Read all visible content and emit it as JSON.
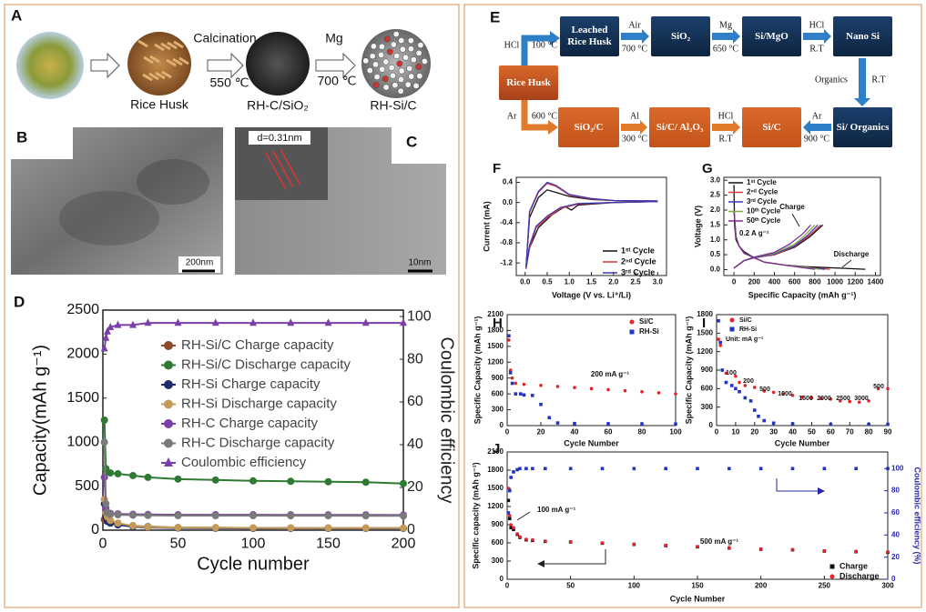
{
  "panel_a": {
    "label": "A",
    "items": [
      "Rice Husk",
      "RH-C/SiO₂",
      "RH-Si/C"
    ],
    "steps": [
      {
        "top": "Calcination",
        "bottom": "550 ℃"
      },
      {
        "top": "Mg",
        "bottom": "700 ℃"
      }
    ]
  },
  "panel_b": {
    "label": "B",
    "scale": "200nm"
  },
  "panel_c": {
    "label": "C",
    "scale": "10nm",
    "inset": "d=0.31nm"
  },
  "panel_e": {
    "label": "E",
    "nodes": [
      "Leached Rice Husk",
      "SiO₂",
      "Si/MgO",
      "Nano Si",
      "Rice Husk",
      "SiO₂/C",
      "Si/C/ Al₂O₃",
      "Si/C",
      "Si/ Organics"
    ],
    "edges": [
      {
        "top": "HCl",
        "bottom": "100 °C"
      },
      {
        "top": "Air",
        "bottom": "700 °C"
      },
      {
        "top": "Mg",
        "bottom": "650 °C"
      },
      {
        "top": "HCl",
        "bottom": "R.T"
      },
      {
        "top": "Organics",
        "bottom": "R.T"
      },
      {
        "top": "Ar",
        "bottom": "600 °C"
      },
      {
        "top": "Al",
        "bottom": "300 °C"
      },
      {
        "top": "HCl",
        "bottom": "R.T"
      },
      {
        "top": "Ar",
        "bottom": "900 °C"
      }
    ]
  },
  "chart_data": [
    {
      "type": "line",
      "panel": "D",
      "xlabel": "Cycle number",
      "ylabel": "Capacity(mAh g⁻¹)",
      "y2label": "Coulombic efficiency",
      "xlim": [
        0,
        200
      ],
      "ylim": [
        0,
        2500
      ],
      "y2lim": [
        0,
        103
      ],
      "xticks": [
        0,
        50,
        100,
        150,
        200
      ],
      "yticks": [
        0,
        500,
        1000,
        1500,
        2000,
        2500
      ],
      "y2ticks": [
        0,
        20,
        40,
        60,
        80,
        100
      ],
      "x": [
        1,
        2,
        3,
        5,
        10,
        20,
        30,
        50,
        75,
        100,
        125,
        150,
        175,
        200
      ],
      "series": [
        {
          "name": "RH-Si/C Charge capacity",
          "color": "#8b4b2a",
          "marker": "circle",
          "values": [
            120,
            110,
            100,
            90,
            70,
            50,
            40,
            30,
            28,
            25,
            25,
            24,
            24,
            23
          ]
        },
        {
          "name": "RH-Si/C Discharge capacity",
          "color": "#2f7a32",
          "marker": "circle",
          "values": [
            1250,
            700,
            660,
            650,
            640,
            620,
            600,
            580,
            570,
            560,
            555,
            550,
            545,
            530
          ]
        },
        {
          "name": "RH-Si    Charge capacity",
          "color": "#1f2d6b",
          "marker": "circle",
          "values": [
            300,
            150,
            100,
            80,
            60,
            40,
            30,
            25,
            22,
            20,
            20,
            20,
            20,
            20
          ]
        },
        {
          "name": "RH-Si    Discharge capacity",
          "color": "#c49a5a",
          "marker": "circle",
          "values": [
            350,
            200,
            150,
            110,
            80,
            50,
            35,
            30,
            27,
            25,
            24,
            24,
            23,
            23
          ]
        },
        {
          "name": "RH-C     Charge capacity",
          "color": "#7b3fa8",
          "marker": "circle",
          "values": [
            600,
            250,
            200,
            190,
            185,
            180,
            178,
            175,
            175,
            175,
            174,
            174,
            173,
            172
          ]
        },
        {
          "name": "RH-C     Discharge capacity",
          "color": "#7a7a7a",
          "marker": "circle",
          "values": [
            1000,
            300,
            200,
            180,
            175,
            170,
            168,
            165,
            165,
            165,
            164,
            164,
            163,
            162
          ]
        },
        {
          "name": "Coulombic efficiency",
          "color": "#7b3fa8",
          "marker": "triangle",
          "axis": "y2",
          "values": [
            85,
            90,
            93,
            95,
            96,
            96,
            97,
            97,
            97,
            97,
            97,
            97,
            97,
            97
          ]
        }
      ]
    },
    {
      "type": "line",
      "panel": "F",
      "xlabel": "Voltage (V vs. Li⁺/Li)",
      "ylabel": "Current (mA)",
      "xlim": [
        -0.2,
        3.2
      ],
      "ylim": [
        -1.45,
        0.5
      ],
      "xticks": [
        {
          "value": 0,
          "label": "0.0"
        },
        {
          "value": 0.5,
          "label": "0.5"
        },
        {
          "value": 1,
          "label": "1.0"
        },
        {
          "value": 1.5,
          "label": "1.5"
        },
        {
          "value": 2,
          "label": "2.0"
        },
        {
          "value": 2.5,
          "label": "2.5"
        },
        {
          "value": 3,
          "label": "3.0"
        }
      ],
      "yticks": [
        {
          "value": -1.2,
          "label": "-1.2"
        },
        {
          "value": -0.8,
          "label": "-0.8"
        },
        {
          "value": -0.4,
          "label": "-0.4"
        },
        {
          "value": 0,
          "label": "0.0"
        },
        {
          "value": 0.4,
          "label": "0.4"
        }
      ],
      "series": [
        {
          "name": "1ˢᵗ Cycle",
          "color": "#111111",
          "x": [
            3.0,
            2.0,
            1.2,
            1.05,
            0.9,
            0.6,
            0.3,
            0.1,
            0.02,
            0.1,
            0.3,
            0.5,
            0.7,
            1.0,
            1.5,
            2.0,
            3.0
          ],
          "values": [
            0.02,
            0.0,
            -0.05,
            -0.15,
            -0.08,
            -0.25,
            -0.5,
            -0.9,
            -1.3,
            -0.3,
            0.1,
            0.25,
            0.2,
            0.12,
            0.06,
            0.04,
            0.03
          ]
        },
        {
          "name": "2ⁿᵈ Cycle",
          "color": "#d9363e",
          "x": [
            3.0,
            2.0,
            1.2,
            0.8,
            0.5,
            0.25,
            0.1,
            0.02,
            0.1,
            0.3,
            0.5,
            0.7,
            1.0,
            1.5,
            2.0,
            3.0
          ],
          "values": [
            0.02,
            0.0,
            -0.03,
            -0.12,
            -0.3,
            -0.5,
            -0.9,
            -1.32,
            -0.2,
            0.2,
            0.38,
            0.32,
            0.15,
            0.07,
            0.04,
            0.03
          ]
        },
        {
          "name": "3ʳᵈ Cycle",
          "color": "#3b3bb5",
          "x": [
            3.0,
            2.0,
            1.2,
            0.8,
            0.5,
            0.25,
            0.1,
            0.02,
            0.1,
            0.3,
            0.5,
            0.7,
            1.0,
            1.5,
            2.0,
            3.0
          ],
          "values": [
            0.02,
            0.0,
            -0.02,
            -0.1,
            -0.27,
            -0.47,
            -0.85,
            -1.3,
            -0.18,
            0.22,
            0.4,
            0.34,
            0.16,
            0.08,
            0.04,
            0.03
          ]
        }
      ]
    },
    {
      "type": "line",
      "panel": "G",
      "xlabel": "Specific Capacity (mAh g⁻¹)",
      "ylabel": "Voltage (V)",
      "xlim": [
        -100,
        1450
      ],
      "ylim": [
        -0.2,
        3.1
      ],
      "xticks": [
        0,
        200,
        400,
        600,
        800,
        1000,
        1200,
        1400
      ],
      "yticks": [
        {
          "value": 0,
          "label": "0.0"
        },
        0.5,
        {
          "value": 1,
          "label": "1.0"
        },
        1.5,
        {
          "value": 2,
          "label": "2.0"
        },
        2.5,
        {
          "value": 3,
          "label": "3.0"
        }
      ],
      "annotations": [
        "Charge",
        "Discharge",
        "0.2 A g⁻¹"
      ],
      "series": [
        {
          "name": "1ˢᵗ Cycle",
          "color": "#111111",
          "x": [
            0,
            5,
            20,
            50,
            100,
            200,
            300,
            500,
            700,
            900,
            1100,
            1300,
            null,
            0,
            100,
            200,
            400,
            600,
            750,
            880
          ],
          "values": [
            2.85,
            1.5,
            1.0,
            0.8,
            0.6,
            0.4,
            0.25,
            0.15,
            0.1,
            0.07,
            0.04,
            0.01,
            null,
            0.05,
            0.3,
            0.4,
            0.5,
            0.75,
            1.1,
            1.5
          ]
        },
        {
          "name": "2ⁿᵈ Cycle",
          "color": "#d9363e",
          "x": [
            0,
            20,
            50,
            100,
            200,
            300,
            500,
            700,
            950,
            null,
            0,
            100,
            200,
            400,
            600,
            750,
            860
          ],
          "values": [
            2.0,
            1.1,
            0.8,
            0.55,
            0.4,
            0.25,
            0.15,
            0.08,
            0.01,
            null,
            0.05,
            0.3,
            0.4,
            0.5,
            0.78,
            1.15,
            1.5
          ]
        },
        {
          "name": "3ʳᵈ Cycle",
          "color": "#3b3bb5",
          "x": [
            0,
            20,
            50,
            100,
            200,
            300,
            500,
            700,
            900,
            null,
            0,
            100,
            200,
            400,
            600,
            730,
            830
          ],
          "values": [
            2.0,
            1.1,
            0.8,
            0.55,
            0.4,
            0.25,
            0.15,
            0.08,
            0.01,
            null,
            0.05,
            0.3,
            0.4,
            0.52,
            0.8,
            1.15,
            1.5
          ]
        },
        {
          "name": "10ᵗʰ Cycle",
          "color": "#7fae3f",
          "x": [
            0,
            20,
            50,
            100,
            200,
            300,
            500,
            700,
            850,
            null,
            0,
            100,
            200,
            400,
            600,
            700,
            800
          ],
          "values": [
            2.0,
            1.1,
            0.8,
            0.55,
            0.4,
            0.25,
            0.15,
            0.08,
            0.01,
            null,
            0.05,
            0.3,
            0.42,
            0.55,
            0.85,
            1.15,
            1.5
          ]
        },
        {
          "name": "50ᵗʰ Cycle",
          "color": "#7b2f8f",
          "x": [
            0,
            20,
            50,
            100,
            200,
            300,
            500,
            650,
            800,
            null,
            0,
            100,
            200,
            400,
            550,
            680,
            760
          ],
          "values": [
            2.0,
            1.1,
            0.8,
            0.55,
            0.4,
            0.25,
            0.15,
            0.08,
            0.01,
            null,
            0.05,
            0.3,
            0.42,
            0.58,
            0.85,
            1.2,
            1.5
          ]
        }
      ]
    },
    {
      "type": "scatter",
      "panel": "H",
      "xlabel": "Cycle Number",
      "ylabel": "Specific Capacity (mAh g⁻¹)",
      "xlim": [
        0,
        100
      ],
      "ylim": [
        0,
        2100
      ],
      "xticks": [
        0,
        20,
        40,
        60,
        80,
        100
      ],
      "yticks": [
        0,
        300,
        600,
        900,
        1200,
        1500,
        1800,
        2100
      ],
      "annotations": [
        "200 mA g⁻¹"
      ],
      "series": [
        {
          "name": "Si/C",
          "color": "#e8202a",
          "marker": "circle",
          "x": [
            1,
            2,
            3,
            5,
            10,
            20,
            30,
            40,
            50,
            60,
            70,
            80,
            90,
            100
          ],
          "values": [
            1620,
            1050,
            900,
            800,
            780,
            760,
            740,
            720,
            700,
            680,
            660,
            640,
            620,
            600
          ]
        },
        {
          "name": "RH-Si",
          "color": "#2233c8",
          "marker": "square",
          "x": [
            1,
            2,
            3,
            5,
            8,
            10,
            15,
            20,
            25,
            30,
            40,
            60,
            80,
            100
          ],
          "values": [
            1700,
            1000,
            800,
            600,
            600,
            580,
            570,
            400,
            150,
            50,
            40,
            35,
            30,
            30
          ]
        }
      ]
    },
    {
      "type": "scatter",
      "panel": "I",
      "xlabel": "Cycle Number",
      "ylabel": "Specific Capacity (mAh g⁻¹)",
      "xlim": [
        0,
        90
      ],
      "ylim": [
        0,
        1800
      ],
      "xticks": [
        0,
        10,
        20,
        30,
        40,
        50,
        60,
        70,
        80,
        90
      ],
      "yticks": [
        0,
        300,
        600,
        900,
        1200,
        1500,
        1800
      ],
      "annotations": [
        "Unit: mA g⁻¹",
        "100",
        "200",
        "500",
        "1000",
        "1500",
        "2000",
        "2500",
        "3000",
        "500"
      ],
      "series": [
        {
          "name": "Si/C",
          "color": "#e8202a",
          "marker": "circle",
          "x": [
            1,
            2,
            3,
            5,
            10,
            12,
            15,
            20,
            25,
            30,
            35,
            40,
            45,
            50,
            55,
            60,
            65,
            70,
            75,
            80,
            85,
            90
          ],
          "values": [
            1400,
            1300,
            900,
            850,
            800,
            700,
            650,
            620,
            560,
            540,
            510,
            490,
            460,
            450,
            440,
            430,
            400,
            390,
            380,
            400,
            600,
            600
          ]
        },
        {
          "name": "RH-Si",
          "color": "#2233c8",
          "marker": "square",
          "x": [
            1,
            2,
            3,
            5,
            8,
            10,
            12,
            15,
            18,
            20,
            22,
            25,
            30,
            40,
            60,
            80,
            90
          ],
          "values": [
            1700,
            1350,
            900,
            700,
            650,
            600,
            550,
            450,
            400,
            250,
            150,
            80,
            40,
            30,
            20,
            20,
            20
          ]
        }
      ]
    },
    {
      "type": "scatter",
      "panel": "J",
      "xlabel": "Cycle Number",
      "ylabel": "Specific capacity (mAh g⁻¹)",
      "y2label": "Coulombic efficiency (%)",
      "y2_color": "#2727a8",
      "xlim": [
        0,
        300
      ],
      "ylim": [
        0,
        2100
      ],
      "y2lim": [
        0,
        115
      ],
      "xticks": [
        0,
        50,
        100,
        150,
        200,
        250,
        300
      ],
      "yticks": [
        0,
        300,
        600,
        900,
        1200,
        1500,
        1800,
        2100
      ],
      "y2ticks": [
        0,
        20,
        40,
        60,
        80,
        100
      ],
      "annotations": [
        "100 mA g⁻¹",
        "500 mA g⁻¹"
      ],
      "x": [
        1,
        2,
        3,
        5,
        8,
        10,
        15,
        20,
        30,
        50,
        75,
        100,
        125,
        150,
        175,
        200,
        225,
        250,
        275,
        300
      ],
      "series": [
        {
          "name": "Charge",
          "color": "#111111",
          "marker": "square",
          "values": [
            1300,
            1000,
            850,
            820,
            740,
            690,
            650,
            640,
            625,
            615,
            595,
            575,
            555,
            535,
            515,
            495,
            485,
            465,
            455,
            445
          ]
        },
        {
          "name": "Discharge",
          "color": "#e8202a",
          "marker": "circle",
          "values": [
            1500,
            1050,
            900,
            850,
            750,
            700,
            660,
            650,
            630,
            620,
            600,
            580,
            560,
            540,
            520,
            500,
            490,
            470,
            460,
            450
          ]
        },
        {
          "color": "#2233c8",
          "marker": "square",
          "axis": "y2",
          "values": [
            60,
            80,
            92,
            97,
            99,
            100,
            100,
            100,
            100,
            100,
            100,
            100,
            100,
            100,
            100,
            100,
            100,
            100,
            100,
            100
          ]
        }
      ]
    }
  ]
}
